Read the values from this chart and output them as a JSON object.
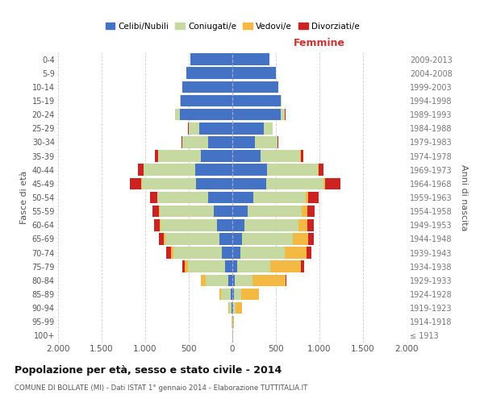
{
  "age_groups": [
    "100+",
    "95-99",
    "90-94",
    "85-89",
    "80-84",
    "75-79",
    "70-74",
    "65-69",
    "60-64",
    "55-59",
    "50-54",
    "45-49",
    "40-44",
    "35-39",
    "30-34",
    "25-29",
    "20-24",
    "15-19",
    "10-14",
    "5-9",
    "0-4"
  ],
  "birth_years": [
    "≤ 1913",
    "1914-1918",
    "1919-1923",
    "1924-1928",
    "1929-1933",
    "1934-1938",
    "1939-1943",
    "1944-1948",
    "1949-1953",
    "1954-1958",
    "1959-1963",
    "1964-1968",
    "1969-1973",
    "1974-1978",
    "1979-1983",
    "1984-1988",
    "1989-1993",
    "1994-1998",
    "1999-2003",
    "2004-2008",
    "2009-2013"
  ],
  "male": {
    "celibi": [
      2,
      3,
      10,
      20,
      50,
      80,
      120,
      150,
      180,
      210,
      280,
      420,
      430,
      360,
      280,
      380,
      600,
      590,
      570,
      530,
      480
    ],
    "coniugati": [
      2,
      5,
      30,
      110,
      260,
      430,
      560,
      620,
      640,
      620,
      580,
      620,
      590,
      490,
      290,
      120,
      55,
      10,
      2,
      1,
      0
    ],
    "vedovi": [
      0,
      2,
      5,
      20,
      50,
      35,
      25,
      18,
      12,
      8,
      5,
      4,
      2,
      1,
      0,
      0,
      0,
      0,
      0,
      0,
      0
    ],
    "divorziati": [
      0,
      0,
      1,
      2,
      5,
      25,
      50,
      55,
      65,
      80,
      75,
      130,
      60,
      35,
      10,
      5,
      2,
      0,
      0,
      0,
      0
    ]
  },
  "female": {
    "nubili": [
      2,
      3,
      8,
      15,
      30,
      55,
      90,
      110,
      140,
      180,
      240,
      390,
      400,
      320,
      260,
      360,
      560,
      560,
      530,
      500,
      430
    ],
    "coniugate": [
      2,
      5,
      25,
      90,
      200,
      380,
      510,
      580,
      620,
      620,
      600,
      660,
      580,
      460,
      260,
      100,
      45,
      8,
      2,
      1,
      0
    ],
    "vedove": [
      2,
      10,
      80,
      200,
      380,
      350,
      250,
      180,
      100,
      60,
      30,
      15,
      8,
      3,
      1,
      0,
      0,
      0,
      0,
      0,
      0
    ],
    "divorziate": [
      0,
      0,
      2,
      5,
      10,
      35,
      60,
      65,
      75,
      80,
      120,
      175,
      60,
      30,
      10,
      5,
      2,
      0,
      0,
      0,
      0
    ]
  },
  "colors": {
    "celibi": "#4472C4",
    "coniugati": "#C5D9A0",
    "vedovi": "#F4B942",
    "divorziati": "#CC2222"
  },
  "title": "Popolazione per età, sesso e stato civile - 2014",
  "subtitle": "COMUNE DI BOLLATE (MI) - Dati ISTAT 1° gennaio 2014 - Elaborazione TUTTITALIA.IT",
  "xlabel_right": "Femmine",
  "ylabel_left": "Fasce di età",
  "ylabel_right": "Anni di nascita",
  "xlim": 2000,
  "xtick_step": 500,
  "legend_labels": [
    "Celibi/Nubili",
    "Coniugati/e",
    "Vedovi/e",
    "Divorziati/e"
  ],
  "background_color": "#ffffff",
  "grid_color": "#cccccc",
  "bar_height": 0.85
}
